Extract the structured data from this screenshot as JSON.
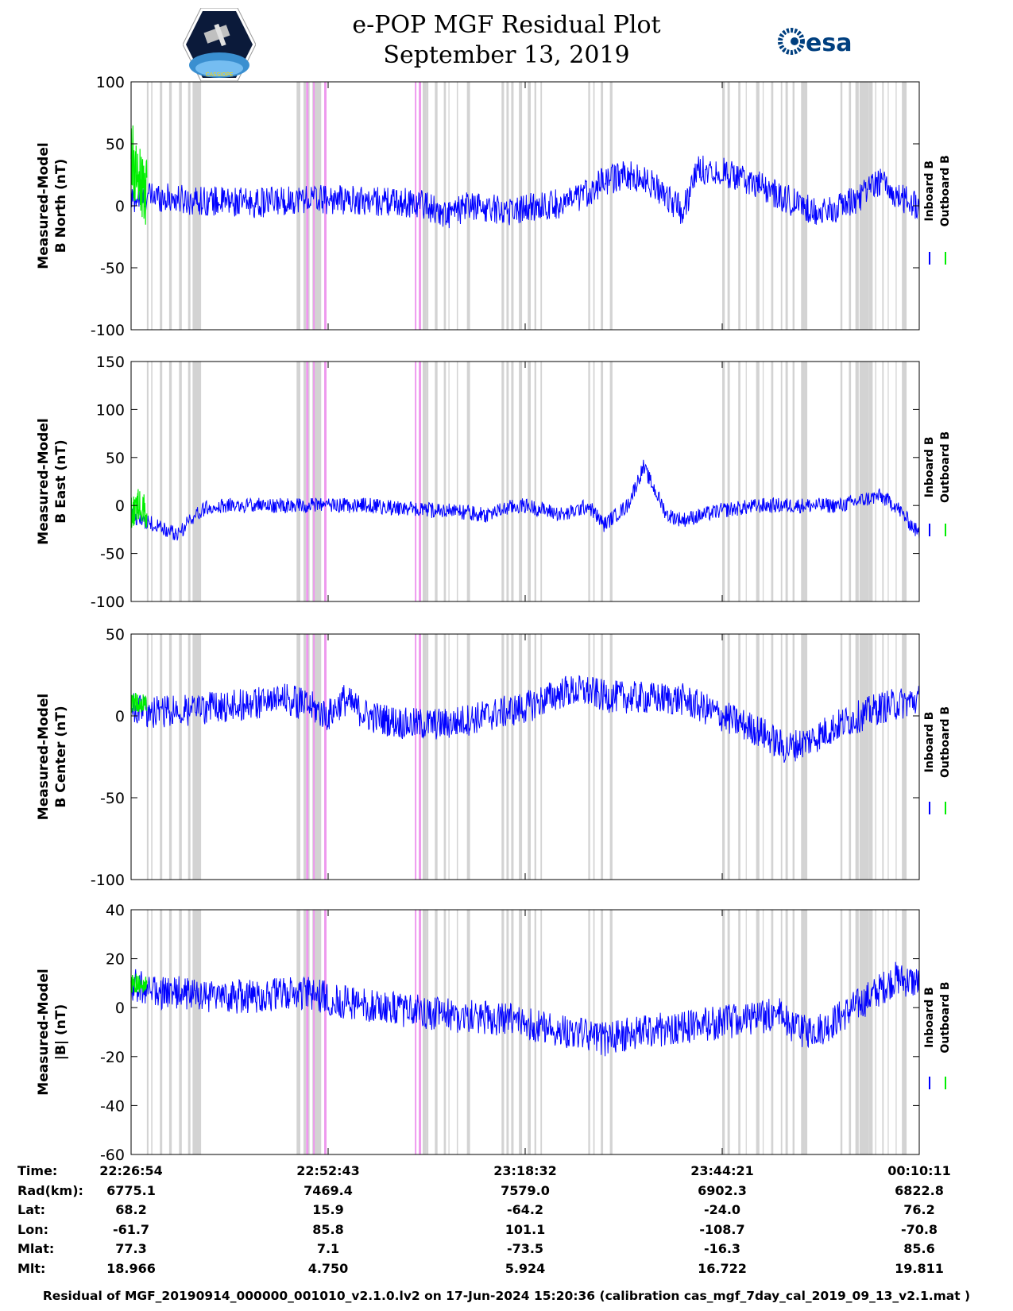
{
  "header": {
    "title": "e-POP MGF Residual Plot",
    "date": "September 13, 2019",
    "logo_left": "CASSIOPE",
    "logo_right": "esa"
  },
  "colors": {
    "inboard": "#0000ff",
    "outboard": "#00ee00",
    "gap_gray": "#d3d3d3",
    "gap_magenta": "#ee99ee"
  },
  "chart_data": [
    {
      "type": "line",
      "ylabel": [
        "Measured-Model",
        "B North (nT)"
      ],
      "ylim": [
        -100,
        100
      ],
      "yticks": [
        100,
        50,
        0,
        -50,
        -100
      ],
      "legend": [
        "Inboard B",
        "Outboard B"
      ],
      "series": [
        {
          "name": "Inboard B",
          "x": [
            0,
            0.03,
            0.06,
            0.1,
            0.16,
            0.22,
            0.3,
            0.37,
            0.4,
            0.43,
            0.48,
            0.52,
            0.56,
            0.6,
            0.63,
            0.66,
            0.68,
            0.7,
            0.72,
            0.75,
            0.8,
            0.85,
            0.88,
            0.92,
            0.95,
            0.97,
            1.0
          ],
          "y": [
            5,
            8,
            5,
            4,
            2,
            6,
            4,
            2,
            -8,
            0,
            -4,
            0,
            3,
            20,
            25,
            18,
            8,
            -5,
            30,
            28,
            15,
            0,
            -6,
            5,
            20,
            8,
            0
          ],
          "amp": 12
        },
        {
          "name": "Outboard B",
          "x": [
            0,
            0.01,
            0.02
          ],
          "y": [
            40,
            20,
            10
          ],
          "amp": 30
        }
      ]
    },
    {
      "type": "line",
      "ylabel": [
        "Measured-Model",
        "B East (nT)"
      ],
      "ylim": [
        -100,
        150
      ],
      "yticks": [
        150,
        100,
        50,
        0,
        -50,
        -100
      ],
      "legend": [
        "Inboard B",
        "Outboard B"
      ],
      "series": [
        {
          "name": "Inboard B",
          "x": [
            0,
            0.03,
            0.06,
            0.08,
            0.1,
            0.2,
            0.3,
            0.37,
            0.4,
            0.45,
            0.48,
            0.5,
            0.55,
            0.58,
            0.6,
            0.63,
            0.65,
            0.68,
            0.7,
            0.75,
            0.8,
            0.9,
            0.95,
            0.97,
            1.0
          ],
          "y": [
            -10,
            -20,
            -30,
            -10,
            0,
            0,
            0,
            -5,
            -5,
            -10,
            -2,
            0,
            -10,
            0,
            -20,
            0,
            40,
            -10,
            -15,
            -5,
            0,
            0,
            10,
            0,
            -30
          ],
          "amp": 8
        },
        {
          "name": "Outboard B",
          "x": [
            0,
            0.01,
            0.02
          ],
          "y": [
            -10,
            0,
            -5
          ],
          "amp": 20
        }
      ]
    },
    {
      "type": "line",
      "ylabel": [
        "Measured-Model",
        "B Center (nT)"
      ],
      "ylim": [
        -100,
        50
      ],
      "yticks": [
        50,
        0,
        -50,
        -100
      ],
      "legend": [
        "Inboard B",
        "Outboard B"
      ],
      "series": [
        {
          "name": "Inboard B",
          "x": [
            0,
            0.03,
            0.1,
            0.2,
            0.23,
            0.25,
            0.27,
            0.3,
            0.35,
            0.4,
            0.45,
            0.5,
            0.55,
            0.58,
            0.6,
            0.7,
            0.75,
            0.8,
            0.83,
            0.86,
            0.9,
            0.95,
            1.0
          ],
          "y": [
            5,
            2,
            5,
            10,
            5,
            0,
            10,
            0,
            -5,
            -5,
            0,
            5,
            15,
            15,
            12,
            10,
            0,
            -10,
            -20,
            -15,
            -5,
            5,
            10
          ],
          "amp": 10
        },
        {
          "name": "Outboard B",
          "x": [
            0,
            0.01,
            0.02
          ],
          "y": [
            8,
            8,
            8
          ],
          "amp": 6
        }
      ]
    },
    {
      "type": "line",
      "ylabel": [
        "Measured-Model",
        "|B| (nT)"
      ],
      "ylim": [
        -60,
        40
      ],
      "yticks": [
        40,
        20,
        0,
        -20,
        -40,
        -60
      ],
      "legend": [
        "Inboard B",
        "Outboard B"
      ],
      "series": [
        {
          "name": "Inboard B",
          "x": [
            0,
            0.03,
            0.06,
            0.1,
            0.17,
            0.22,
            0.26,
            0.32,
            0.4,
            0.48,
            0.56,
            0.6,
            0.64,
            0.7,
            0.75,
            0.8,
            0.8,
            0.82,
            0.85,
            0.88,
            0.94,
            0.97,
            1.0
          ],
          "y": [
            10,
            6,
            6,
            4,
            5,
            6,
            3,
            0,
            -3,
            -5,
            -10,
            -13,
            -10,
            -8,
            -6,
            -4,
            -4,
            -2,
            -10,
            -8,
            5,
            12,
            10
          ],
          "amp": 7
        },
        {
          "name": "Outboard B",
          "x": [
            0,
            0.01,
            0.02
          ],
          "y": [
            10,
            10,
            10
          ],
          "amp": 4
        }
      ]
    }
  ],
  "xticks": [
    "22:26:54",
    "22:52:43",
    "23:18:32",
    "23:44:21",
    "00:10:11"
  ],
  "orbit_table": {
    "labels": [
      "Time:",
      "Rad(km):",
      "Lat:",
      "Lon:",
      "Mlat:",
      "Mlt:"
    ],
    "columns": [
      [
        "22:26:54",
        "6775.1",
        "68.2",
        "-61.7",
        "77.3",
        "18.966"
      ],
      [
        "22:52:43",
        "7469.4",
        "15.9",
        "85.8",
        "7.1",
        "4.750"
      ],
      [
        "23:18:32",
        "7579.0",
        "-64.2",
        "101.1",
        "-73.5",
        "5.924"
      ],
      [
        "23:44:21",
        "6902.3",
        "-24.0",
        "-108.7",
        "-16.3",
        "16.722"
      ],
      [
        "00:10:11",
        "6822.8",
        "76.2",
        "-70.8",
        "85.6",
        "19.811"
      ]
    ]
  },
  "footnote": "Residual of MGF_20190914_000000_001010_v2.1.0.lv2 on 17-Jun-2024 15:20:36 (calibration cas_mgf_7day_cal_2019_09_13_v2.1.mat )"
}
